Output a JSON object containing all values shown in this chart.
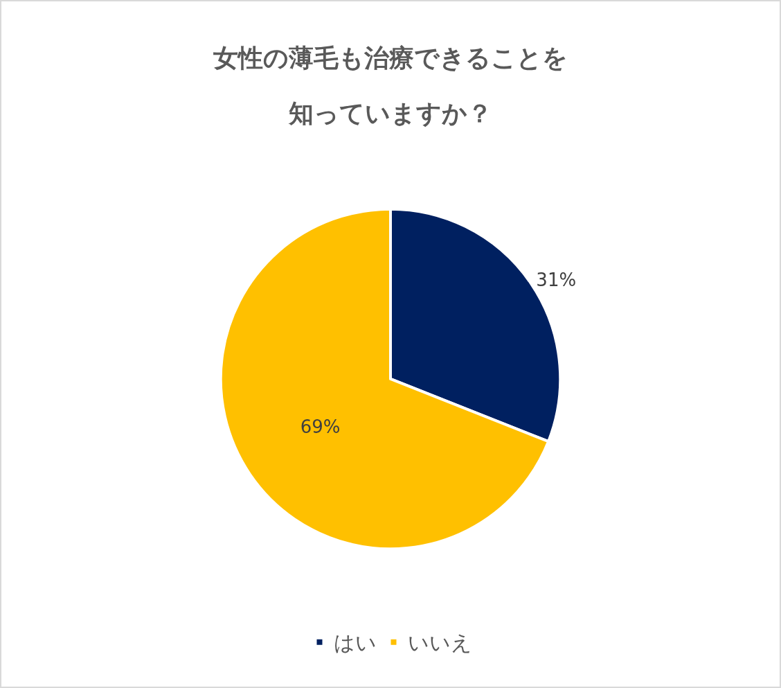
{
  "chart_data": {
    "type": "pie",
    "title": "女性の薄毛も治療できることを知っていますか？",
    "categories": [
      "はい",
      "いいえ"
    ],
    "values": [
      31,
      69
    ],
    "colors": [
      "#002060",
      "#ffc000"
    ],
    "value_labels": [
      "31%",
      "69%"
    ],
    "legend": "bottom"
  }
}
